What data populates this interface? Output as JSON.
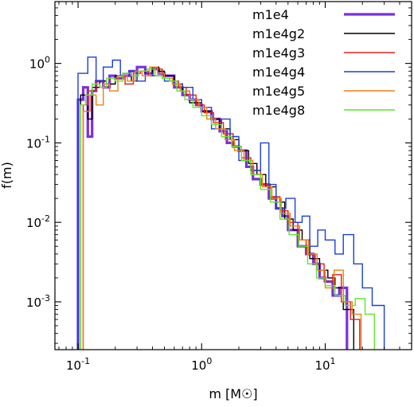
{
  "chart_data": {
    "type": "histogram-step",
    "xscale": "log",
    "yscale": "log",
    "xlim": [
      0.065,
      50
    ],
    "ylim": [
      0.00025,
      6
    ],
    "xlabel": "m [M☉]",
    "ylabel": "f(m)",
    "xticks": [
      {
        "value": 0.1,
        "base": "10",
        "exp": "-1"
      },
      {
        "value": 1,
        "base": "10",
        "exp": "0"
      },
      {
        "value": 10,
        "base": "10",
        "exp": "1"
      }
    ],
    "yticks": [
      {
        "value": 0.001,
        "base": "10",
        "exp": "-3"
      },
      {
        "value": 0.01,
        "base": "10",
        "exp": "-2"
      },
      {
        "value": 0.1,
        "base": "10",
        "exp": "-1"
      },
      {
        "value": 1,
        "base": "10",
        "exp": "0"
      }
    ],
    "legend_position": "top-right",
    "series": [
      {
        "name": "m1e4",
        "color": "#7b2fe0",
        "width": 3.2,
        "edges": [
          0.1,
          0.11,
          0.12,
          0.13,
          0.14,
          0.16,
          0.18,
          0.2,
          0.23,
          0.26,
          0.3,
          0.35,
          0.4,
          0.45,
          0.5,
          0.6,
          0.7,
          0.8,
          0.9,
          1.0,
          1.2,
          1.4,
          1.6,
          1.8,
          2.0,
          2.3,
          2.6,
          3.0,
          3.5,
          4.0,
          4.5,
          5.0,
          6.0,
          7.0,
          8.0,
          9.0,
          10.0,
          11.5,
          13.0,
          15.0
        ],
        "values": [
          0.35,
          0.5,
          0.12,
          0.45,
          0.6,
          0.5,
          0.7,
          0.65,
          0.7,
          0.8,
          0.9,
          0.75,
          0.85,
          0.75,
          0.7,
          0.5,
          0.4,
          0.35,
          0.3,
          0.25,
          0.2,
          0.14,
          0.1,
          0.09,
          0.08,
          0.05,
          0.035,
          0.03,
          0.02,
          0.015,
          0.012,
          0.008,
          0.005,
          0.004,
          0.003,
          0.002,
          0.0018,
          0.0012,
          0.0015
        ]
      },
      {
        "name": "m1e4g2",
        "color": "#000000",
        "width": 1.4,
        "edges": [
          0.105,
          0.12,
          0.13,
          0.15,
          0.17,
          0.2,
          0.23,
          0.27,
          0.3,
          0.35,
          0.4,
          0.45,
          0.5,
          0.6,
          0.7,
          0.8,
          1.0,
          1.2,
          1.4,
          1.7,
          2.0,
          2.4,
          2.8,
          3.3,
          4.0,
          4.7,
          5.5,
          6.5,
          7.5,
          9.0,
          10.5,
          12.0,
          14.0,
          17.0
        ],
        "values": [
          0.4,
          0.2,
          0.5,
          0.6,
          0.55,
          0.7,
          0.75,
          0.6,
          0.8,
          0.75,
          0.9,
          0.8,
          0.7,
          0.55,
          0.45,
          0.32,
          0.25,
          0.2,
          0.15,
          0.11,
          0.08,
          0.055,
          0.04,
          0.028,
          0.018,
          0.011,
          0.008,
          0.006,
          0.0035,
          0.0025,
          0.002,
          0.0015,
          0.0008
        ]
      },
      {
        "name": "m1e4g3",
        "color": "#e0201c",
        "width": 1.4,
        "edges": [
          0.11,
          0.12,
          0.14,
          0.16,
          0.18,
          0.21,
          0.24,
          0.28,
          0.32,
          0.37,
          0.42,
          0.48,
          0.55,
          0.65,
          0.75,
          0.9,
          1.05,
          1.25,
          1.5,
          1.8,
          2.1,
          2.5,
          3.0,
          3.6,
          4.3,
          5.0,
          6.0,
          7.0,
          8.3,
          9.8,
          11.5,
          13.5,
          16.0,
          19.0
        ],
        "values": [
          0.3,
          0.45,
          0.6,
          0.5,
          0.65,
          0.7,
          0.55,
          0.75,
          0.8,
          0.7,
          0.85,
          0.65,
          0.6,
          0.5,
          0.4,
          0.3,
          0.24,
          0.18,
          0.13,
          0.09,
          0.065,
          0.045,
          0.03,
          0.021,
          0.014,
          0.01,
          0.006,
          0.004,
          0.003,
          0.0018,
          0.0022,
          0.001,
          0.0006
        ]
      },
      {
        "name": "m1e4g4",
        "color": "#1c3fd6",
        "width": 1.4,
        "edges": [
          0.1,
          0.12,
          0.14,
          0.16,
          0.19,
          0.22,
          0.26,
          0.3,
          0.35,
          0.4,
          0.5,
          0.6,
          0.7,
          0.85,
          1.0,
          1.2,
          1.45,
          1.7,
          2.0,
          2.5,
          3.0,
          3.5,
          4.0,
          4.8,
          5.7,
          6.5,
          7.5,
          8.7,
          10.0,
          12.0,
          14.0,
          17.0,
          20.0,
          24.0,
          30.0
        ],
        "values": [
          0.75,
          1.2,
          0.6,
          0.9,
          1.1,
          0.7,
          0.8,
          0.6,
          0.75,
          0.7,
          0.6,
          0.55,
          0.5,
          0.35,
          0.28,
          0.15,
          0.2,
          0.12,
          0.06,
          0.045,
          0.1,
          0.03,
          0.015,
          0.02,
          0.01,
          0.012,
          0.005,
          0.008,
          0.006,
          0.004,
          0.007,
          0.003,
          0.0015,
          0.0009
        ]
      },
      {
        "name": "m1e4g5",
        "color": "#f07f12",
        "width": 1.4,
        "edges": [
          0.11,
          0.125,
          0.14,
          0.16,
          0.18,
          0.21,
          0.25,
          0.29,
          0.33,
          0.38,
          0.44,
          0.5,
          0.58,
          0.67,
          0.8,
          0.95,
          1.1,
          1.3,
          1.55,
          1.85,
          2.2,
          2.6,
          3.1,
          3.7,
          4.4,
          5.2,
          6.2,
          7.3,
          8.6,
          10.0,
          11.8,
          14.0,
          16.5,
          19.5
        ],
        "values": [
          0.25,
          0.4,
          0.3,
          0.55,
          0.45,
          0.7,
          0.6,
          0.8,
          0.7,
          0.9,
          0.75,
          0.65,
          0.55,
          0.45,
          0.35,
          0.28,
          0.2,
          0.15,
          0.11,
          0.08,
          0.06,
          0.04,
          0.028,
          0.02,
          0.013,
          0.009,
          0.006,
          0.004,
          0.0025,
          0.0015,
          0.0025,
          0.001,
          0.0007
        ]
      },
      {
        "name": "m1e4g8",
        "color": "#5ee62b",
        "width": 1.4,
        "edges": [
          0.105,
          0.115,
          0.13,
          0.15,
          0.17,
          0.2,
          0.23,
          0.27,
          0.31,
          0.36,
          0.42,
          0.48,
          0.55,
          0.63,
          0.73,
          0.85,
          1.0,
          1.2,
          1.45,
          1.75,
          2.1,
          2.5,
          3.0,
          3.6,
          4.3,
          5.1,
          6.1,
          7.2,
          8.5,
          10.0,
          12.0,
          14.5,
          17.5,
          21.0,
          25.0
        ],
        "values": [
          0.3,
          0.4,
          0.55,
          0.5,
          0.65,
          0.6,
          0.75,
          0.7,
          0.8,
          0.85,
          0.7,
          0.65,
          0.6,
          0.45,
          0.35,
          0.28,
          0.22,
          0.17,
          0.12,
          0.09,
          0.06,
          0.04,
          0.026,
          0.018,
          0.011,
          0.007,
          0.005,
          0.003,
          0.002,
          0.0016,
          0.0012,
          0.0009,
          0.0011,
          0.0007
        ]
      }
    ]
  }
}
